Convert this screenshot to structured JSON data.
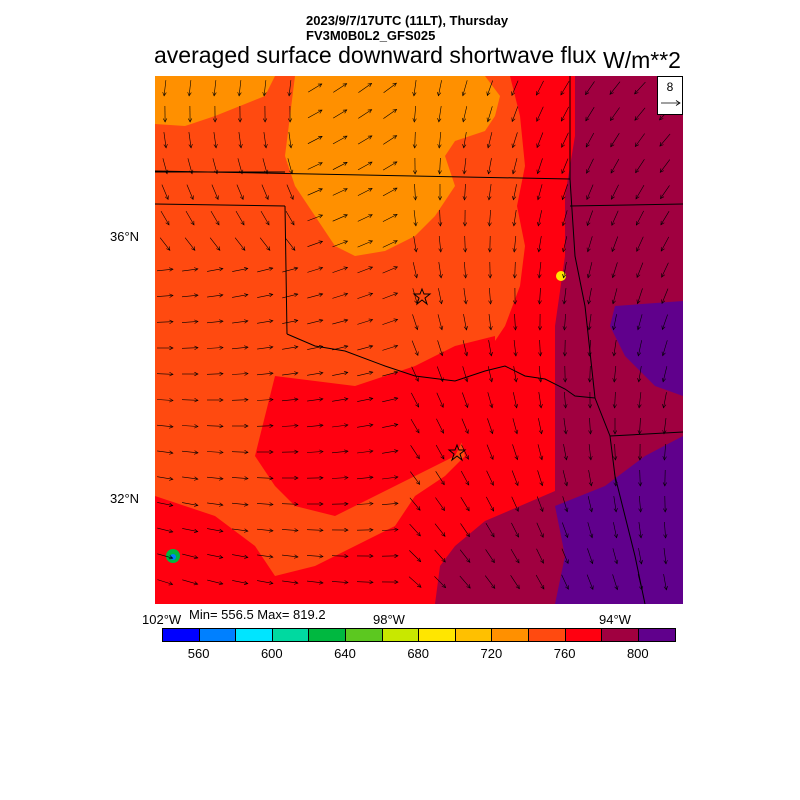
{
  "header": {
    "line1": "2023/9/7/17UTC (11LT), Thursday",
    "line2": "FV3M0B0L2_GFS025"
  },
  "title": "averaged surface downward shortwave flux",
  "units": "W/m**2",
  "reference_vector": {
    "value": "8"
  },
  "axes": {
    "lat_labels": [
      "36°N",
      "32°N"
    ],
    "lon_labels": [
      "102°W",
      "98°W",
      "94°W"
    ]
  },
  "stats": "Min= 556.5 Max= 819.2",
  "colorbar": {
    "colors": [
      "#0000ff",
      "#0080ff",
      "#00e5ff",
      "#00d9a0",
      "#00b840",
      "#5cc820",
      "#c8e800",
      "#ffe600",
      "#ffc000",
      "#ff9000",
      "#ff4a10",
      "#ff0010",
      "#a00040",
      "#60008c"
    ],
    "labels": [
      "560",
      "600",
      "640",
      "680",
      "720",
      "760",
      "800"
    ]
  },
  "markers": [
    {
      "icon": "star-icon",
      "label": "city-marker-north"
    },
    {
      "icon": "star-icon",
      "label": "city-marker-south"
    }
  ]
}
